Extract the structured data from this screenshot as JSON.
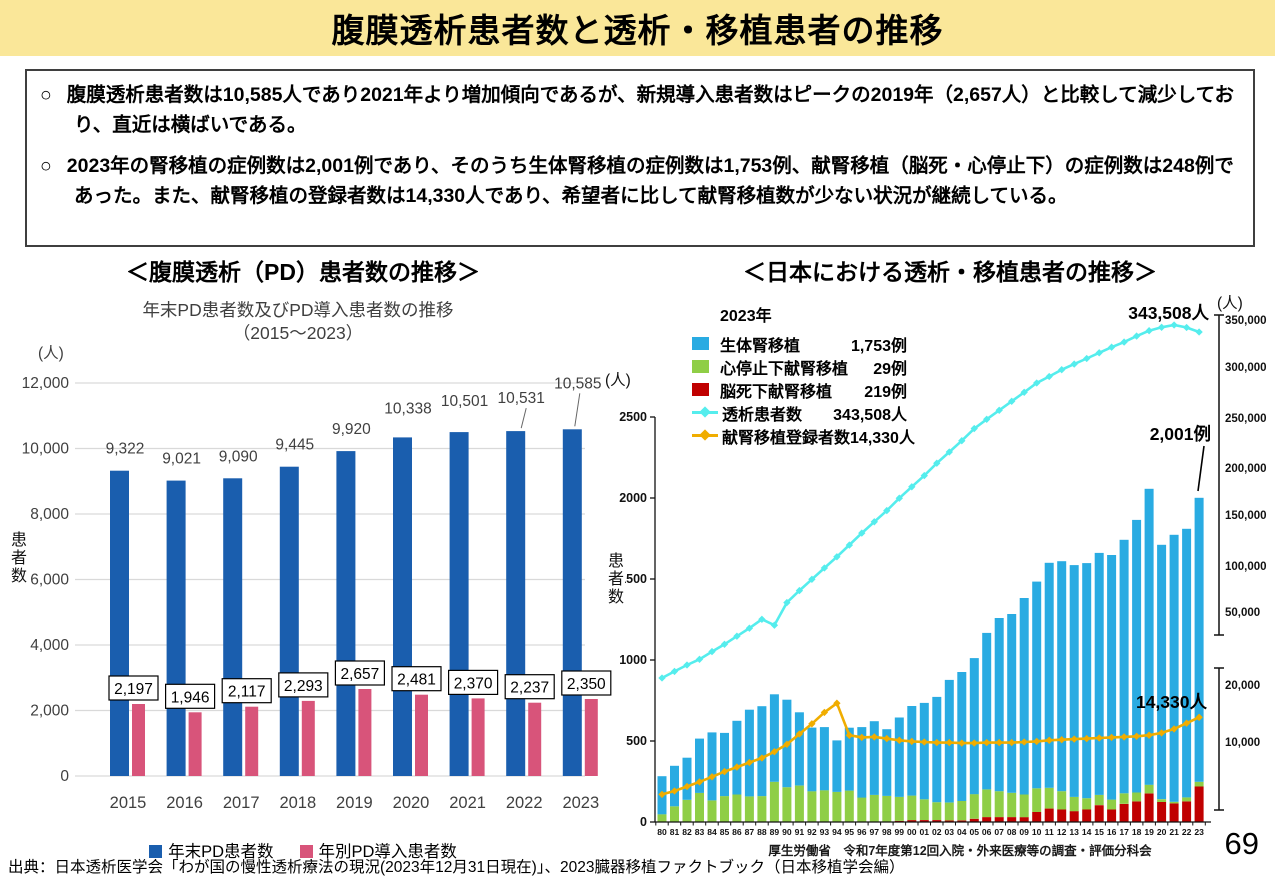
{
  "header": {
    "title": "腹膜透析患者数と透析・移植患者の推移"
  },
  "summary": {
    "marker": "○",
    "bullets": [
      "腹膜透析患者数は10,585人であり2021年より増加傾向であるが、新規導入患者数はピークの2019年（2,657人）と比較して減少しており、直近は横ばいである。",
      "2023年の腎移植の症例数は2,001例であり、そのうち生体腎移植の症例数は1,753例、献腎移植（脳死・心停止下）の症例数は248例であった。また、献腎移植の登録者数は14,330人であり、希望者に比して献腎移植数が少ない状況が継続している。"
    ]
  },
  "footer": {
    "source": "出典：日本透析医学会「わが国の慢性透析療法の現況(2023年12月31日現在)」、2023臓器移植ファクトブック（日本移植学会編）"
  },
  "page_number": "69",
  "chart_data": [
    {
      "type": "bar",
      "title": "＜腹膜透析（PD）患者数の推移＞",
      "subtitle": "年末PD患者数及びPD導入患者数の推移",
      "subtitle2": "（2015～2023）",
      "unit_label": "(人)",
      "ylabel": "患者数",
      "ylim": [
        0,
        12000
      ],
      "yticks": [
        "12,000",
        "10,000",
        "8,000",
        "6,000",
        "4,000",
        "2,000",
        "0"
      ],
      "grid": true,
      "legend_position": "bottom",
      "categories": [
        2015,
        2016,
        2017,
        2018,
        2019,
        2020,
        2021,
        2022,
        2023
      ],
      "series": [
        {
          "name": "年末PD患者数",
          "color": "#1A5EAE",
          "values": [
            9322,
            9021,
            9090,
            9445,
            9920,
            10338,
            10501,
            10531,
            10585
          ]
        },
        {
          "name": "年別PD導入患者数",
          "color": "#D8547A",
          "boxed_labels": true,
          "values": [
            2197,
            1946,
            2117,
            2293,
            2657,
            2481,
            2370,
            2237,
            2350
          ]
        }
      ]
    },
    {
      "type": "combo",
      "title": "＜日本における透析・移植患者の推移＞",
      "legend_year": "2023年",
      "unit_label_left": "(人)",
      "unit_label_right": "(人)",
      "ylabel": "患者数",
      "caption": "厚生労働省　令和7年度第12回入院・外来医療等の調査・評価分科会",
      "left_axis": {
        "max": 2500,
        "ticks": [
          "2500",
          "2000",
          "1500",
          "1000",
          "500",
          "0"
        ]
      },
      "right_axis_upper": {
        "ticks": [
          "350,000",
          "300,000",
          "250,000",
          "200,000",
          "150,000",
          "100,000",
          "50,000"
        ]
      },
      "right_axis_lower": {
        "ticks": [
          "20,000",
          "10,000"
        ]
      },
      "annotations": [
        {
          "text": "343,508人"
        },
        {
          "text": "2,001例"
        },
        {
          "text": "14,330人"
        }
      ],
      "categories": [
        "80",
        "81",
        "82",
        "83",
        "84",
        "85",
        "86",
        "87",
        "88",
        "89",
        "90",
        "91",
        "92",
        "93",
        "94",
        "95",
        "96",
        "97",
        "98",
        "99",
        "00",
        "01",
        "02",
        "03",
        "04",
        "05",
        "06",
        "07",
        "08",
        "09",
        "10",
        "11",
        "12",
        "13",
        "14",
        "15",
        "16",
        "17",
        "18",
        "19",
        "20",
        "21",
        "22",
        "23"
      ],
      "bar_series": [
        {
          "name": "生体腎移植",
          "legend_value": "1,753例",
          "color": "#29ABE2",
          "values": [
            235,
            250,
            260,
            335,
            420,
            390,
            455,
            535,
            555,
            540,
            540,
            452,
            393,
            390,
            318,
            388,
            435,
            455,
            412,
            490,
            553,
            595,
            650,
            757,
            796,
            840,
            966,
            1069,
            1104,
            1213,
            1276,
            1389,
            1420,
            1431,
            1451,
            1494,
            1510,
            1565,
            1683,
            1827,
            1570,
            1648,
            1658,
            1753
          ]
        },
        {
          "name": "心停止下献腎移植",
          "legend_value": "29例",
          "color": "#8FCE46",
          "values": [
            48,
            97,
            137,
            180,
            133,
            160,
            170,
            158,
            160,
            248,
            215,
            225,
            190,
            196,
            186,
            194,
            151,
            167,
            161,
            148,
            151,
            128,
            110,
            110,
            120,
            152,
            171,
            160,
            150,
            140,
            146,
            128,
            113,
            88,
            70,
            63,
            61,
            65,
            55,
            54,
            17,
            10,
            25,
            29
          ]
        },
        {
          "name": "脳死下献腎移植",
          "legend_value": "219例",
          "color": "#C00000",
          "values": [
            0,
            0,
            0,
            0,
            0,
            0,
            0,
            0,
            0,
            0,
            0,
            0,
            0,
            0,
            0,
            0,
            0,
            0,
            0,
            7,
            12,
            12,
            12,
            10,
            10,
            20,
            30,
            30,
            30,
            30,
            62,
            83,
            77,
            67,
            77,
            104,
            77,
            112,
            127,
            176,
            124,
            115,
            127,
            219
          ]
        }
      ],
      "line_series": [
        {
          "name": "透析患者数",
          "legend_value": "343,508人",
          "color": "#55EDED",
          "axis": "upper",
          "values": [
            36397,
            42223,
            47978,
            53017,
            59811,
            66310,
            73537,
            80553,
            88534,
            83221,
            103296,
            114000,
            124000,
            134000,
            144000,
            154413,
            165000,
            175000,
            185000,
            196000,
            206134,
            216000,
            227000,
            237000,
            247000,
            257765,
            266000,
            274000,
            282000,
            290000,
            298252,
            304000,
            310000,
            315000,
            320000,
            324986,
            330000,
            334505,
            339841,
            344640,
            347671,
            349700,
            347474,
            343508
          ]
        },
        {
          "name": "献腎移植登録者数",
          "legend_value": "14,330人",
          "color": "#F0AD00",
          "axis": "lower",
          "values": [
            800,
            1400,
            2200,
            3000,
            3900,
            4800,
            5600,
            6400,
            7200,
            8300,
            9600,
            11400,
            13200,
            15200,
            16800,
            11200,
            10800,
            10900,
            10600,
            10300,
            10100,
            10000,
            9900,
            9900,
            9800,
            9800,
            9900,
            9900,
            9900,
            10000,
            10100,
            10300,
            10400,
            10500,
            10600,
            10700,
            10800,
            10900,
            11000,
            11200,
            11600,
            12300,
            13300,
            14330
          ]
        }
      ]
    }
  ]
}
